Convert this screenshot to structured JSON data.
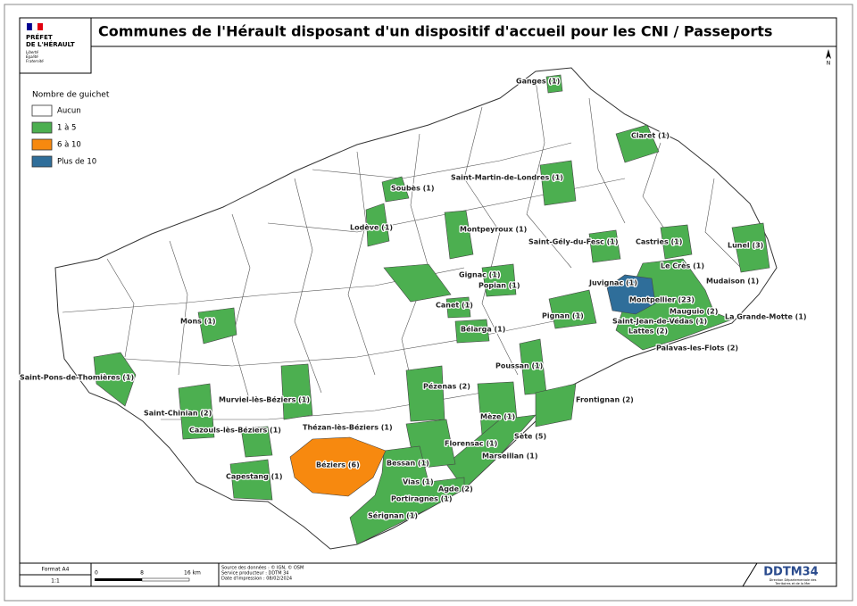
{
  "header": {
    "logo": [
      "PRÉFET",
      "DE L'HÉRAULT",
      "Liberté",
      "Égalité",
      "Fraternité"
    ],
    "title": "Communes de l'Hérault disposant d'un dispositif d'accueil pour les CNI / Passeports"
  },
  "north": "N",
  "legend": {
    "title": "Nombre de guichet",
    "items": [
      {
        "label": "Aucun",
        "color": "#ffffff"
      },
      {
        "label": "1 à 5",
        "color": "#4caf50"
      },
      {
        "label": "6 à 10",
        "color": "#f7890f"
      },
      {
        "label": "Plus de 10",
        "color": "#2f6e9a"
      }
    ]
  },
  "labels": [
    "Ganges (1)",
    "Claret (1)",
    "Soubès (1)",
    "Saint-Martin-de-Londres (1)",
    "Lodève (1)",
    "Montpeyroux (1)",
    "Saint-Gély-du-Fesc (1)",
    "Castries (1)",
    "Lunel (3)",
    "Le Crès (1)",
    "Mudaison (1)",
    "Gignac (1)",
    "Popian (1)",
    "Juvignac (1)",
    "Montpellier (23)",
    "Mauguio (2)",
    "La Grande-Motte (1)",
    "Canet (1)",
    "Pignan (1)",
    "Saint-Jean-de-Védas (1)",
    "Lattes (2)",
    "Mons (1)",
    "Bélarga (1)",
    "Palavas-les-Flots (2)",
    "Poussan (1)",
    "Saint-Pons-de-Thomières (1)",
    "Pézenas (2)",
    "Murviel-lès-Béziers (1)",
    "Frontignan (2)",
    "Saint-Chinian (2)",
    "Mèze (1)",
    "Thézan-lès-Béziers (1)",
    "Cazouls-lès-Béziers (1)",
    "Sète (5)",
    "Florensac (1)",
    "Marseillan (1)",
    "Béziers (6)",
    "Bessan (1)",
    "Capestang (1)",
    "Vias (1)",
    "Agde (2)",
    "Portiragnes (1)",
    "Sérignan (1)"
  ],
  "footer": {
    "format": "Format A4",
    "ratio": "1:1",
    "scale": [
      "0",
      "8",
      "16 km"
    ],
    "sources": [
      "Source des données : © IGN, © OSM",
      "Service producteur : DDTM 34",
      "Date d'impression : 08/02/2024"
    ],
    "logo": "DDTM34",
    "logo_sub": [
      "Direction Départementale des",
      "Territoires et de la Mer"
    ]
  }
}
